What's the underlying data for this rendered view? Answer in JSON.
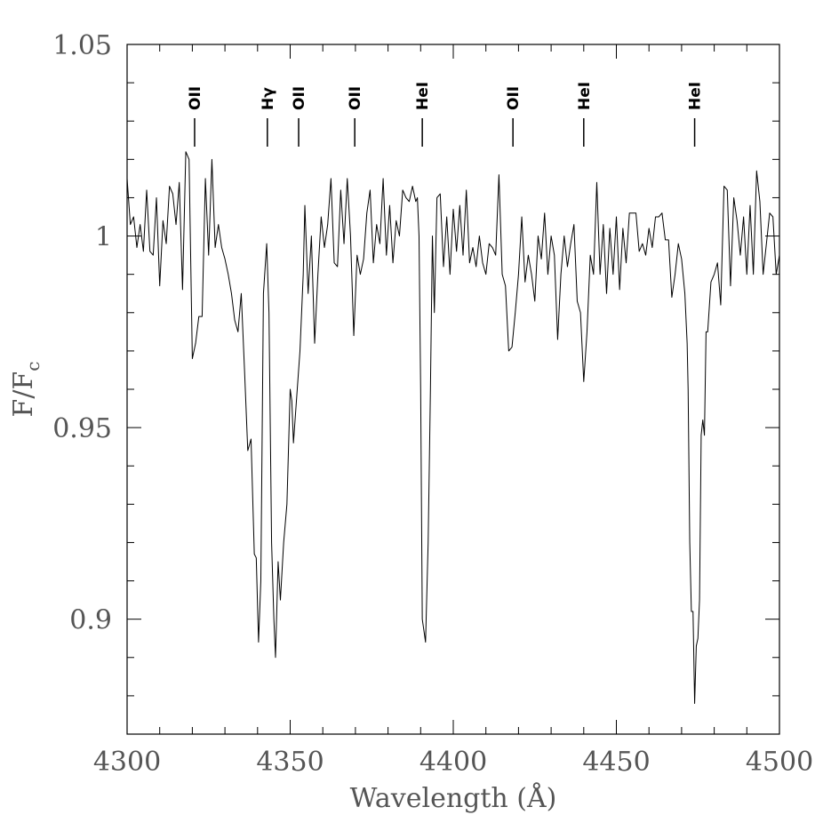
{
  "chart_data": {
    "type": "line",
    "xlabel": "Wavelength (Å)",
    "ylabel": "F/F",
    "ylabel_subscript": "c",
    "xlim": [
      4300,
      4500
    ],
    "ylim": [
      0.87,
      1.05
    ],
    "xticks": [
      4300,
      4350,
      4400,
      4450,
      4500
    ],
    "yticks": [
      0.9,
      0.95,
      1,
      1.05
    ],
    "xminorticks": [
      4310,
      4320,
      4330,
      4340,
      4360,
      4370,
      4380,
      4390,
      4410,
      4420,
      4430,
      4440,
      4460,
      4470,
      4480,
      4490
    ],
    "yminorticks": [
      0.88,
      0.89,
      0.91,
      0.92,
      0.93,
      0.94,
      0.96,
      0.97,
      0.98,
      0.99,
      1.01,
      1.02,
      1.03,
      1.04
    ],
    "annotations": [
      {
        "label": "OII",
        "x": 4320.7
      },
      {
        "label": "Hγ",
        "x": 4343
      },
      {
        "label": "OII",
        "x": 4352.6
      },
      {
        "label": "OII",
        "x": 4369.8
      },
      {
        "label": "HeI",
        "x": 4390.5
      },
      {
        "label": "OII",
        "x": 4418.3
      },
      {
        "label": "HeI",
        "x": 4440
      },
      {
        "label": "HeI",
        "x": 4474
      }
    ],
    "x": [
      4300,
      4301,
      4302,
      4303,
      4304,
      4305,
      4306,
      4307,
      4308,
      4309,
      4310,
      4311,
      4312,
      4313,
      4314,
      4315,
      4316,
      4317,
      4318,
      4319,
      4320,
      4321,
      4322,
      4323,
      4324,
      4325,
      4326,
      4327,
      4328,
      4329,
      4330,
      4331,
      4332,
      4333,
      4334,
      4335,
      4336,
      4337,
      4338,
      4339,
      4339.6,
      4340.3,
      4341,
      4341.8,
      4342.8,
      4343.5,
      4344.3,
      4345,
      4345.5,
      4346.3,
      4347,
      4348,
      4349,
      4350,
      4350.5,
      4351,
      4352,
      4353,
      4354,
      4354.5,
      4355.5,
      4356.5,
      4357.5,
      4358.5,
      4359.5,
      4360.5,
      4361.5,
      4362.5,
      4363.5,
      4364.5,
      4365.5,
      4366.5,
      4367.5,
      4368.5,
      4369.5,
      4370.5,
      4371.5,
      4372.5,
      4373.5,
      4374.5,
      4375.5,
      4376.5,
      4377.5,
      4378.5,
      4379.5,
      4380.5,
      4381.5,
      4382.5,
      4383.5,
      4384.5,
      4385.5,
      4386.5,
      4387.5,
      4388.5,
      4389,
      4389.5,
      4390,
      4390.5,
      4391,
      4391.5,
      4392.3,
      4393,
      4393.6,
      4394.2,
      4395,
      4396,
      4397,
      4398,
      4399,
      4400,
      4401,
      4402,
      4403,
      4404,
      4405,
      4406,
      4407,
      4408,
      4409,
      4410,
      4411,
      4412,
      4413,
      4414,
      4415,
      4416,
      4417,
      4418,
      4419,
      4420,
      4421,
      4422,
      4423,
      4424,
      4425,
      4426,
      4427,
      4428,
      4429,
      4430,
      4431,
      4432,
      4433,
      4434,
      4435,
      4436,
      4437,
      4438,
      4439,
      4440,
      4441,
      4442,
      4443,
      4444,
      4445,
      4446,
      4447,
      4448,
      4449,
      4450,
      4451,
      4452,
      4453,
      4454,
      4455,
      4456,
      4457,
      4458,
      4459,
      4460,
      4461,
      4462,
      4463,
      4464,
      4465,
      4466,
      4467,
      4468,
      4469,
      4470,
      4471,
      4471.7,
      4472,
      4472.5,
      4473,
      4473.5,
      4474,
      4474.5,
      4475,
      4475.5,
      4476,
      4476.5,
      4477,
      4477.5,
      4478,
      4479,
      4480,
      4481,
      4482,
      4483,
      4484,
      4485,
      4486,
      4487,
      4488,
      4489,
      4490,
      4491,
      4492,
      4493,
      4494,
      4495,
      4496,
      4497,
      4498,
      4499,
      4500
    ],
    "series": [
      {
        "color": "#000000",
        "values": [
          1.015,
          1.003,
          1.005,
          0.997,
          1.003,
          0.996,
          1.012,
          0.996,
          0.995,
          1.01,
          0.987,
          1.004,
          0.998,
          1.013,
          1.011,
          1.003,
          1.014,
          0.986,
          1.022,
          1.02,
          0.968,
          0.972,
          0.979,
          0.979,
          1.015,
          0.995,
          1.02,
          0.997,
          1.003,
          0.997,
          0.994,
          0.99,
          0.985,
          0.978,
          0.975,
          0.985,
          0.965,
          0.944,
          0.947,
          0.917,
          0.916,
          0.894,
          0.91,
          0.985,
          0.998,
          0.98,
          0.92,
          0.9,
          0.89,
          0.915,
          0.905,
          0.92,
          0.93,
          0.96,
          0.957,
          0.946,
          0.958,
          0.97,
          0.99,
          1.008,
          0.985,
          1.0,
          0.972,
          0.99,
          1.005,
          0.997,
          1.003,
          1.015,
          0.993,
          0.992,
          1.012,
          0.998,
          1.015,
          1.0,
          0.974,
          0.995,
          0.99,
          0.994,
          1.006,
          1.012,
          0.993,
          1.003,
          0.998,
          1.015,
          0.995,
          1.008,
          0.993,
          1.004,
          1.0,
          1.012,
          1.01,
          1.009,
          1.013,
          1.009,
          1.01,
          1.0,
          0.96,
          0.9,
          0.897,
          0.894,
          0.92,
          0.96,
          1.0,
          0.98,
          1.01,
          1.011,
          0.992,
          1.005,
          0.99,
          1.007,
          0.996,
          1.008,
          0.995,
          1.012,
          0.993,
          0.997,
          0.992,
          1.0,
          0.993,
          0.99,
          0.998,
          0.997,
          0.995,
          1.016,
          0.99,
          0.987,
          0.97,
          0.971,
          0.98,
          0.99,
          1.005,
          0.988,
          0.995,
          0.99,
          0.983,
          1.0,
          0.994,
          1.006,
          0.99,
          1.0,
          0.995,
          0.973,
          0.99,
          1.0,
          0.992,
          0.998,
          1.003,
          0.983,
          0.98,
          0.962,
          0.975,
          0.995,
          0.99,
          1.014,
          0.99,
          1.003,
          0.985,
          1.002,
          0.99,
          1.005,
          0.986,
          1.002,
          0.993,
          1.006,
          1.006,
          1.006,
          0.996,
          0.998,
          0.995,
          1.002,
          0.997,
          1.005,
          1.005,
          1.006,
          0.999,
          0.999,
          0.984,
          0.99,
          0.998,
          0.994,
          0.985,
          0.972,
          0.96,
          0.92,
          0.902,
          0.902,
          0.878,
          0.893,
          0.895,
          0.905,
          0.948,
          0.952,
          0.948,
          0.975,
          0.975,
          0.988,
          0.99,
          0.993,
          0.982,
          1.013,
          1.012,
          0.987,
          1.01,
          1.004,
          0.995,
          1.005,
          0.99,
          1.008,
          0.99,
          1.017,
          1.009,
          0.99,
          0.998,
          1.006,
          1.005,
          0.99,
          0.995
        ]
      }
    ]
  }
}
